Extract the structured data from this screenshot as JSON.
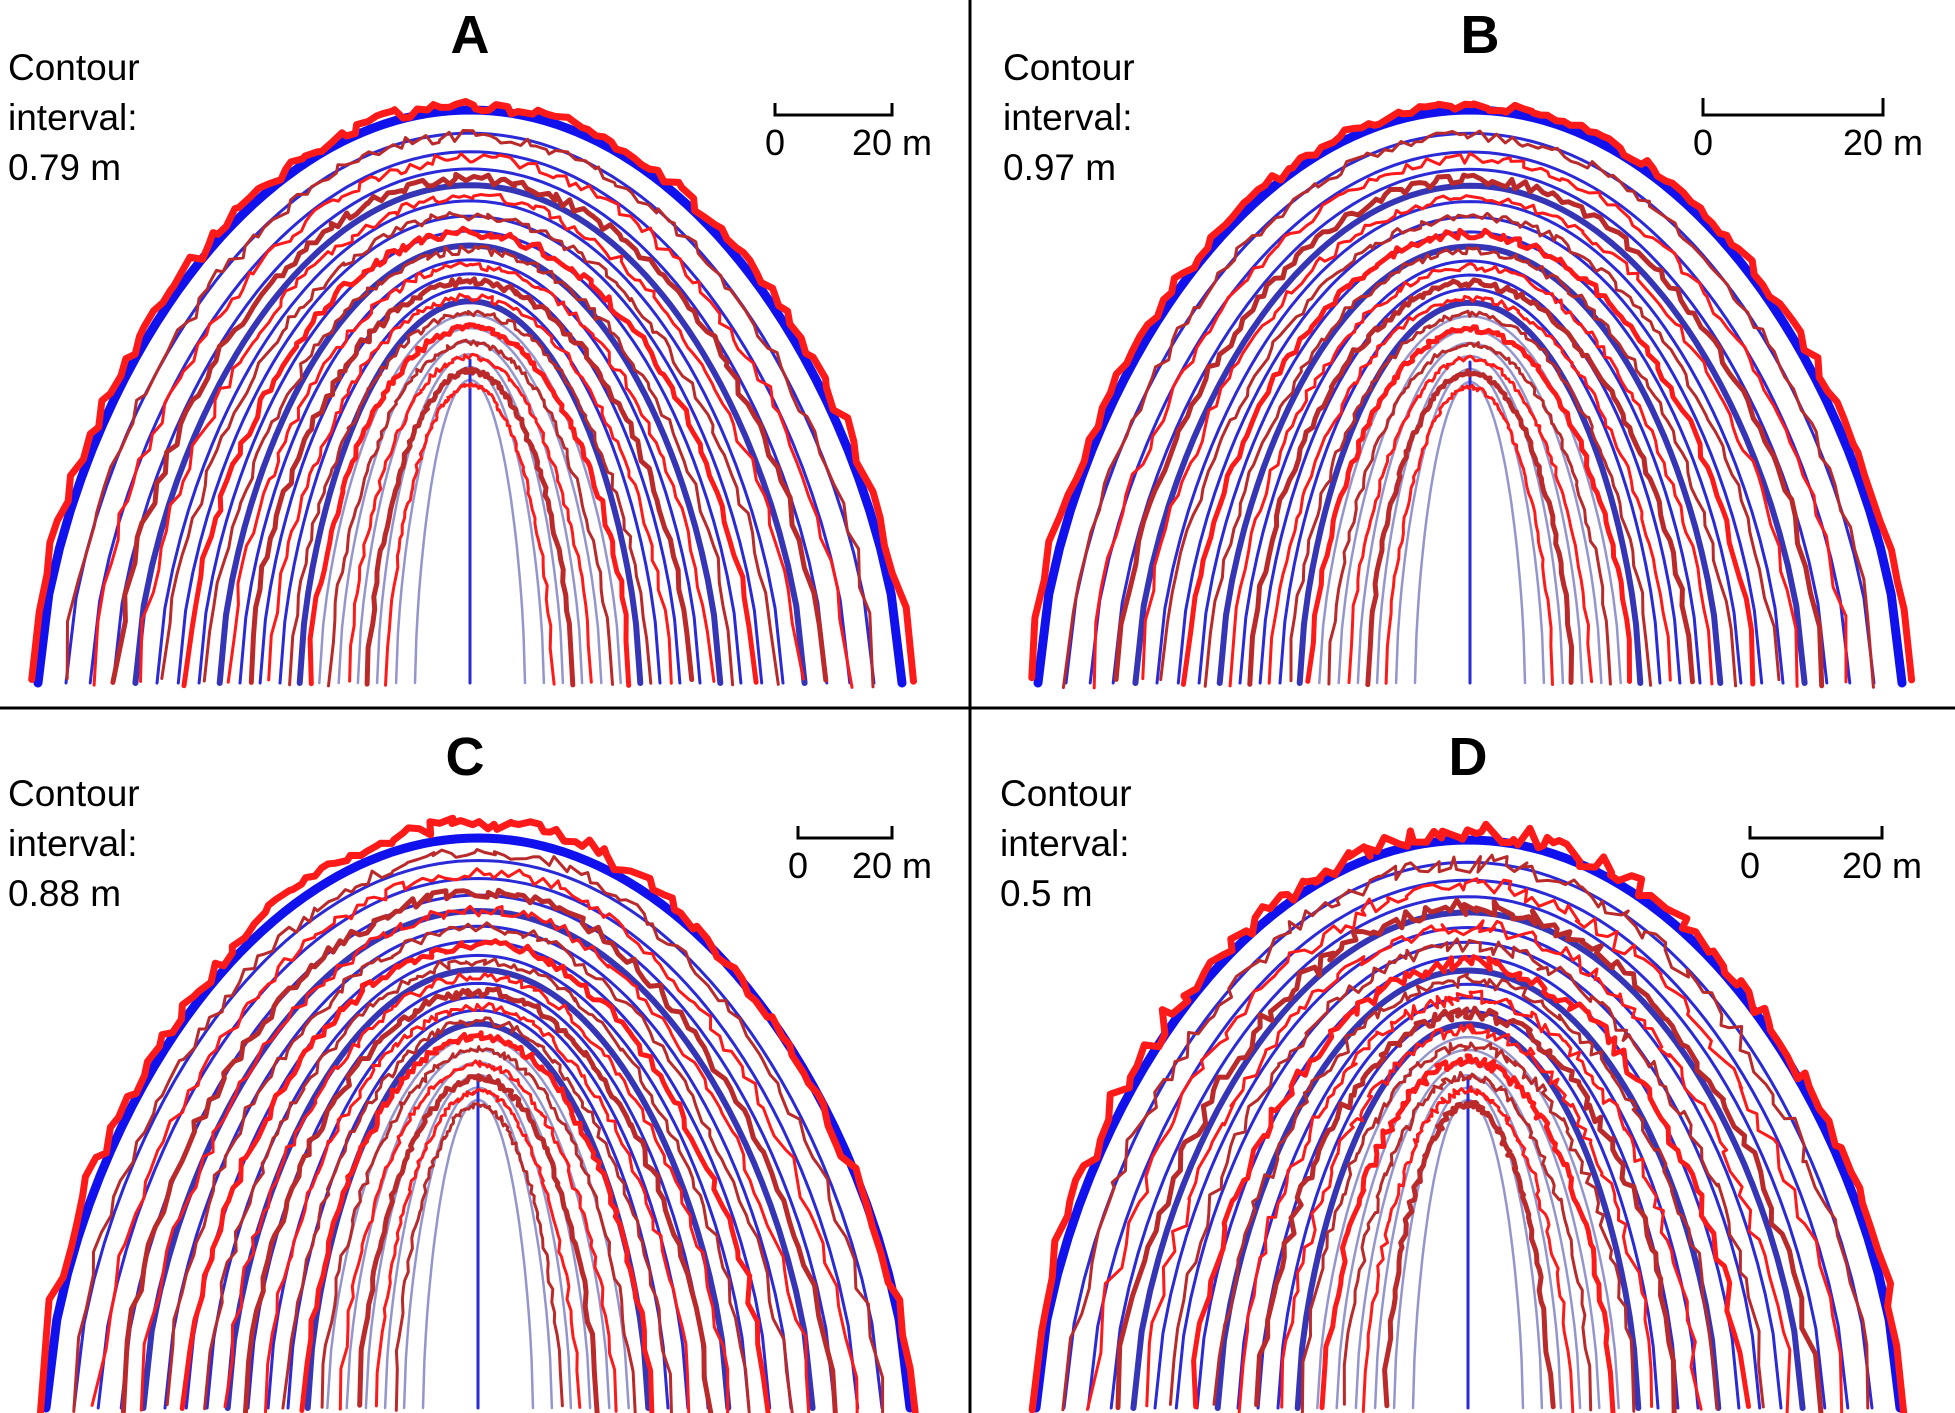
{
  "panels": [
    {
      "id": "a",
      "letter": "A",
      "contour_label": "Contour",
      "contour_label2": "interval:",
      "contour_value": "0.79 m",
      "scale_start": "0",
      "scale_end": "20 m",
      "model_contours": 19,
      "observed_contours": 17,
      "observed_noise": 1.0,
      "observed_skew": 0.0,
      "observed_drop": 0.0
    },
    {
      "id": "b",
      "letter": "B",
      "contour_label": "Contour",
      "contour_label2": "interval:",
      "contour_value": "0.97 m",
      "scale_start": "0",
      "scale_end": "20 m",
      "model_contours": 19,
      "observed_contours": 17,
      "observed_noise": 0.9,
      "observed_skew": 0.0,
      "observed_drop": 0.0
    },
    {
      "id": "c",
      "letter": "C",
      "contour_label": "Contour",
      "contour_label2": "interval:",
      "contour_value": "0.88 m",
      "scale_start": "0",
      "scale_end": "20 m",
      "model_contours": 19,
      "observed_contours": 18,
      "observed_noise": 1.1,
      "observed_skew": 0.35,
      "observed_drop": 0.55
    },
    {
      "id": "d",
      "letter": "D",
      "contour_label": "Contour",
      "contour_label2": "interval:",
      "contour_value": "0.5 m",
      "scale_start": "0",
      "scale_end": "20 m",
      "model_contours": 19,
      "observed_contours": 16,
      "observed_noise": 1.6,
      "observed_skew": 0.1,
      "observed_drop": 0.15
    }
  ],
  "colors": {
    "model_outer": "#1111ee",
    "model_major": "#3535b5",
    "model_minor": "#2a2ad6",
    "model_inner": "#8a8ac8",
    "observed_bright": "#ff1a1a",
    "observed_dark": "#bb2a2a",
    "divider": "#000000"
  }
}
